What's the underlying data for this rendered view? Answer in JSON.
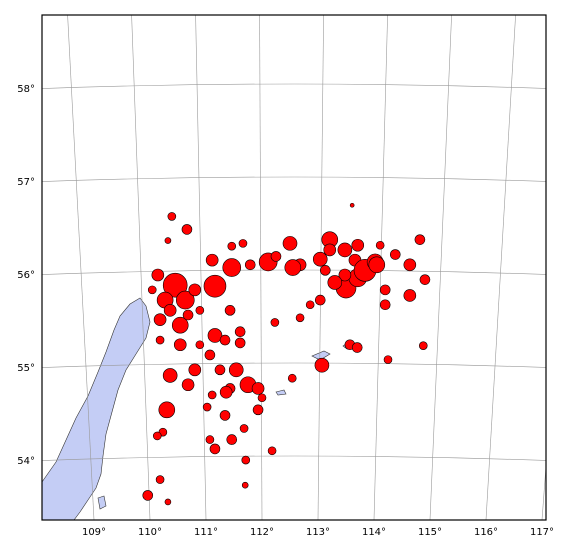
{
  "map": {
    "event_color": "#ff0000",
    "lat_ticks": [
      {
        "value": 54,
        "label": "54°"
      },
      {
        "value": 55,
        "label": "55°"
      },
      {
        "value": 56,
        "label": "56°"
      },
      {
        "value": 57,
        "label": "57°"
      },
      {
        "value": 58,
        "label": "58°"
      }
    ],
    "lon_ticks": [
      {
        "value": 109,
        "label": "109°"
      },
      {
        "value": 110,
        "label": "110°"
      },
      {
        "value": 111,
        "label": "111°"
      },
      {
        "value": 112,
        "label": "112°"
      },
      {
        "value": 113,
        "label": "113°"
      },
      {
        "value": 114,
        "label": "114°"
      },
      {
        "value": 115,
        "label": "115°"
      },
      {
        "value": 116,
        "label": "116°"
      },
      {
        "value": 117,
        "label": "117°"
      }
    ],
    "events": {
      "lon": [
        110.39,
        110.66,
        110.32,
        110.14,
        110.45,
        111.16,
        110.27,
        110.63,
        110.18,
        110.54,
        110.89,
        111.16,
        111.34,
        111.61,
        110.54,
        110.89,
        111.07,
        110.18,
        110.8,
        110.36,
        110.68,
        111.25,
        111.54,
        111.43,
        111.75,
        111.93,
        112.0,
        111.36,
        111.11,
        111.02,
        110.3,
        111.34,
        111.93,
        111.68,
        111.07,
        111.16,
        110.23,
        110.13,
        111.71,
        112.18,
        109.96,
        110.18,
        110.32,
        111.61,
        111.43,
        111.66,
        111.46,
        112.11,
        111.46,
        111.79,
        112.25,
        112.5,
        112.68,
        112.55,
        113.04,
        113.21,
        113.13,
        113.48,
        113.66,
        113.5,
        113.71,
        113.84,
        114.02,
        113.48,
        113.3,
        113.04,
        112.86,
        112.68,
        113.07,
        113.57,
        113.7,
        114.25,
        114.2,
        114.2,
        114.64,
        114.64,
        114.91,
        114.82,
        114.38,
        114.11,
        114.05,
        113.71,
        113.21,
        114.88,
        111.11,
        110.36,
        110.8,
        110.04,
        110.68,
        111.46,
        111.7,
        112.54,
        112.23,
        113.61
      ],
      "lat": [
        56.63,
        56.49,
        56.37,
        56.0,
        55.89,
        55.88,
        55.73,
        55.73,
        55.52,
        55.46,
        55.62,
        55.35,
        55.3,
        55.39,
        55.25,
        55.25,
        55.14,
        55.3,
        54.98,
        54.92,
        54.82,
        54.98,
        54.98,
        54.78,
        54.82,
        54.78,
        54.68,
        54.74,
        54.71,
        54.58,
        54.55,
        54.49,
        54.55,
        54.35,
        54.23,
        54.13,
        54.31,
        54.27,
        54.01,
        54.11,
        53.63,
        53.8,
        53.56,
        55.27,
        55.62,
        56.34,
        56.31,
        56.14,
        56.08,
        56.11,
        56.2,
        56.34,
        56.11,
        56.08,
        56.17,
        56.38,
        56.05,
        56.27,
        56.16,
        55.86,
        55.97,
        56.05,
        56.14,
        56.0,
        55.92,
        55.73,
        55.68,
        55.54,
        55.03,
        55.25,
        55.22,
        55.09,
        55.68,
        55.84,
        55.78,
        56.11,
        55.95,
        56.38,
        56.22,
        56.32,
        56.11,
        56.32,
        56.27,
        55.24,
        56.16,
        55.62,
        55.84,
        55.84,
        55.57,
        54.23,
        53.74,
        54.89,
        55.49,
        56.75
      ],
      "size": [
        4,
        5,
        3,
        6,
        12,
        11,
        8,
        9,
        6,
        8,
        4,
        7,
        5,
        5,
        6,
        4,
        5,
        4,
        6,
        7,
        6,
        5,
        7,
        5,
        8,
        6,
        4,
        6,
        4,
        4,
        8,
        5,
        5,
        4,
        4,
        5,
        4,
        4,
        4,
        4,
        5,
        4,
        3,
        5,
        5,
        4,
        4,
        9,
        9,
        5,
        5,
        7,
        6,
        8,
        7,
        8,
        5,
        7,
        6,
        10,
        9,
        11,
        8,
        6,
        7,
        5,
        4,
        4,
        7,
        5,
        5,
        4,
        5,
        5,
        6,
        6,
        5,
        5,
        5,
        4,
        8,
        6,
        6,
        4,
        6,
        6,
        6,
        4,
        5,
        5,
        3,
        4,
        4,
        2
      ]
    }
  }
}
